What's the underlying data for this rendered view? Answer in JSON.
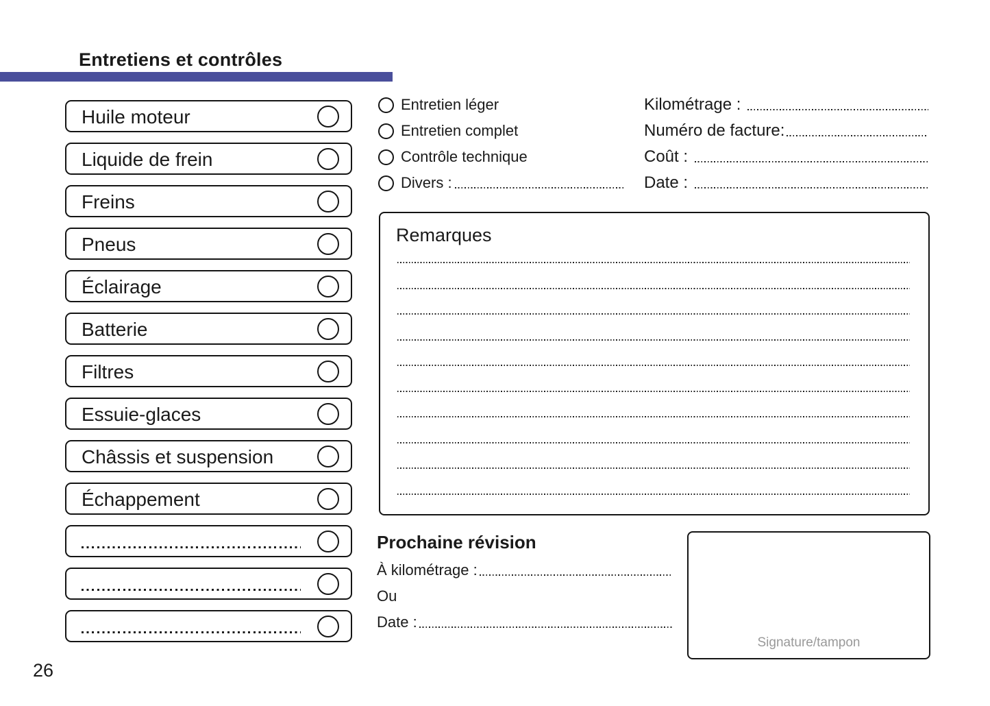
{
  "page": {
    "title": "Entretiens et contrôles",
    "number": "26",
    "accent_color": "#4a4f9b"
  },
  "checklist": {
    "items": [
      {
        "label": "Huile moteur"
      },
      {
        "label": "Liquide de frein"
      },
      {
        "label": "Freins"
      },
      {
        "label": "Pneus"
      },
      {
        "label": "Éclairage"
      },
      {
        "label": "Batterie"
      },
      {
        "label": "Filtres"
      },
      {
        "label": "Essuie-glaces"
      },
      {
        "label": "Châssis et suspension"
      },
      {
        "label": "Échappement"
      },
      {
        "label": ""
      },
      {
        "label": ""
      },
      {
        "label": ""
      }
    ]
  },
  "service_types": {
    "options": [
      {
        "label": "Entretien léger"
      },
      {
        "label": "Entretien complet"
      },
      {
        "label": "Contrôle technique"
      },
      {
        "label": "Divers :"
      }
    ]
  },
  "record_fields": {
    "fields": [
      {
        "label": "Kilométrage : "
      },
      {
        "label": "Numéro de facture:"
      },
      {
        "label": "Coût : "
      },
      {
        "label": "Date : "
      }
    ]
  },
  "remarks": {
    "title": "Remarques",
    "line_count": 10
  },
  "next_service": {
    "title": "Prochaine révision",
    "km_label": "À kilométrage :",
    "or_label": "Ou",
    "date_label": "Date :"
  },
  "signature": {
    "label": "Signature/tampon"
  }
}
